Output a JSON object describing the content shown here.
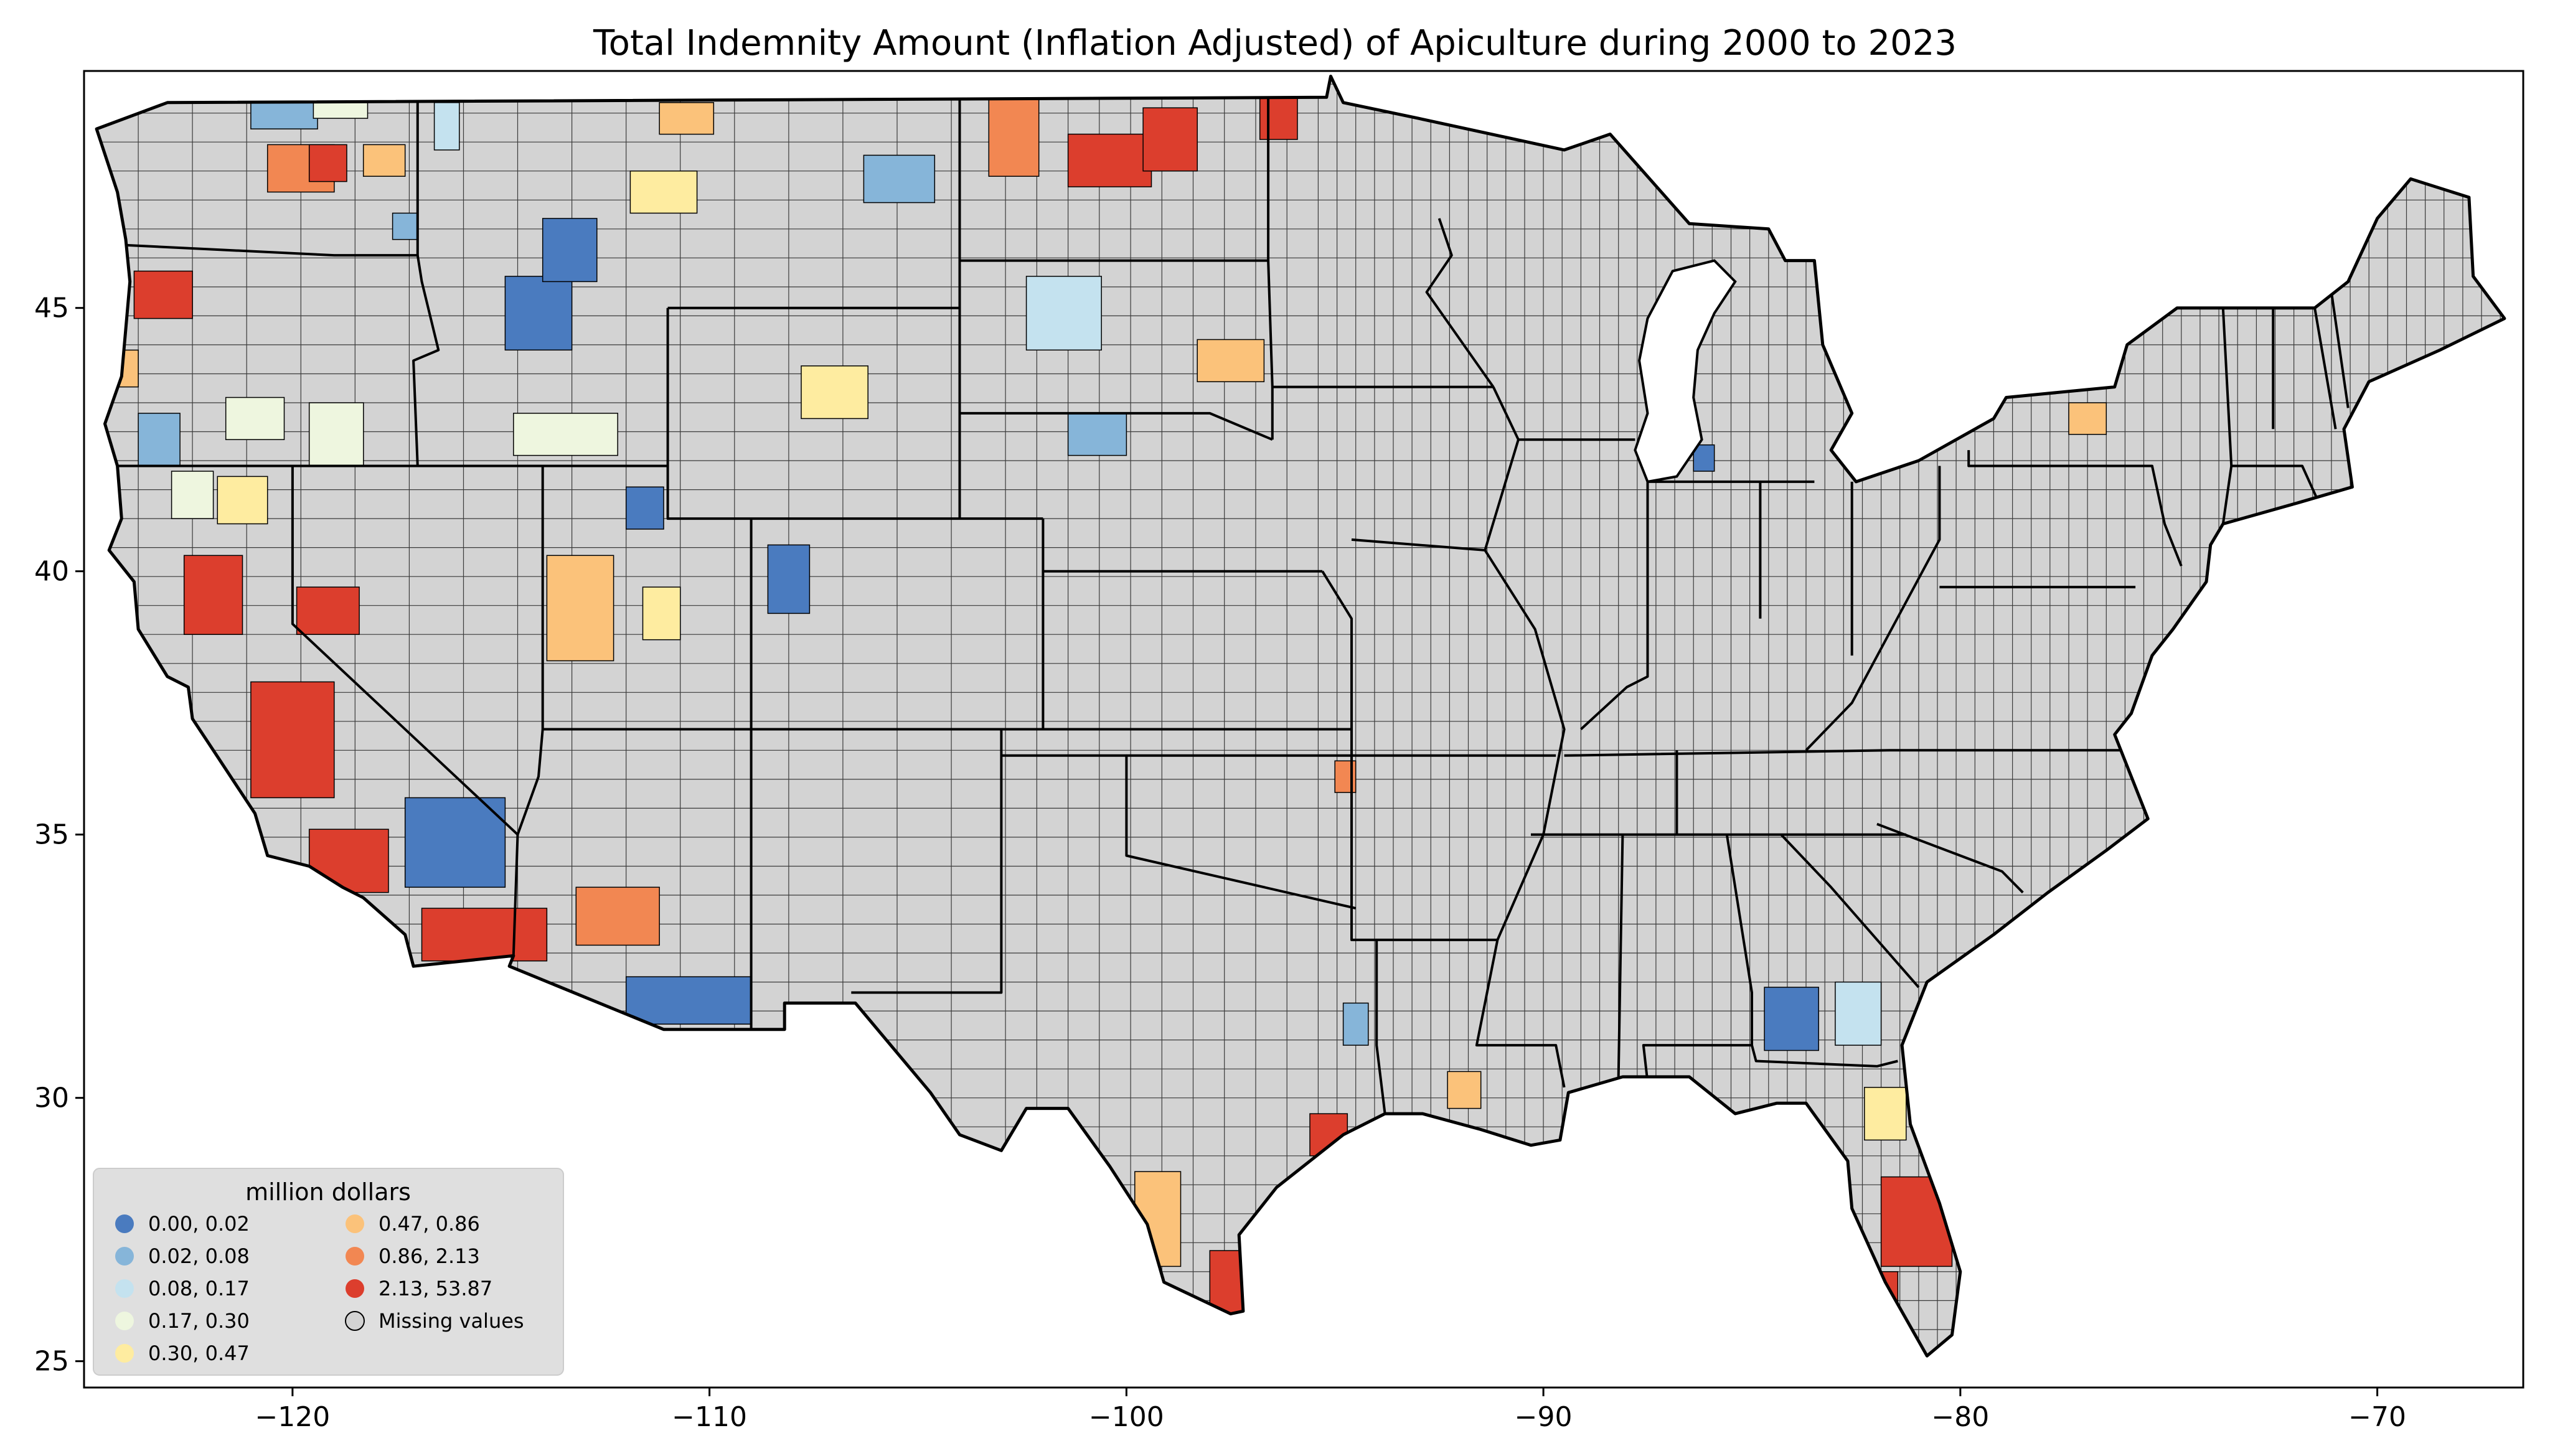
{
  "figure": {
    "title": "Total Indemnity Amount  (Inflation Adjusted) of Apiculture during 2000 to 2023"
  },
  "chart_data": {
    "type": "choropleth-map",
    "title": "Total Indemnity Amount  (Inflation Adjusted) of Apiculture during 2000 to 2023",
    "region": "Contiguous United States (counties)",
    "xlabel": "",
    "ylabel": "",
    "xlim": [
      -125,
      -66.5
    ],
    "ylim": [
      24.5,
      49.5
    ],
    "x_ticks": [
      -120,
      -110,
      -100,
      -90,
      -80,
      -70
    ],
    "x_tick_labels": [
      "−120",
      "−110",
      "−100",
      "−90",
      "−80",
      "−70"
    ],
    "y_ticks": [
      25,
      30,
      35,
      40,
      45
    ],
    "y_tick_labels": [
      "25",
      "30",
      "35",
      "40",
      "45"
    ],
    "missing_color": "#d3d3d3",
    "legend": {
      "title": "million dollars",
      "placement": "lower-left",
      "columns": 2,
      "classes": [
        {
          "label": "0.00,  0.02",
          "color": "#4a7bbf"
        },
        {
          "label": "0.02,  0.08",
          "color": "#86b5d9"
        },
        {
          "label": "0.08,  0.17",
          "color": "#c4e2ef"
        },
        {
          "label": "0.17,  0.30",
          "color": "#eef6df"
        },
        {
          "label": "0.30,  0.47",
          "color": "#feeca0"
        },
        {
          "label": "0.47,  0.86",
          "color": "#fbc27a"
        },
        {
          "label": "0.86,  2.13",
          "color": "#f28752"
        },
        {
          "label": "2.13, 53.87",
          "color": "#dc3e2d"
        },
        {
          "label": "Missing values",
          "color": "#d3d3d3"
        }
      ]
    },
    "colored_regions": [
      {
        "area": "Northern Washington",
        "class": 1
      },
      {
        "area": "Northern Washington interior",
        "class": 3
      },
      {
        "area": "Central Washington",
        "class": 6
      },
      {
        "area": "Central Washington core",
        "class": 7
      },
      {
        "area": "Eastern Washington",
        "class": 5
      },
      {
        "area": "Northern Idaho panhandle",
        "class": 2
      },
      {
        "area": "Southeast Washington",
        "class": 1
      },
      {
        "area": "Northwest Oregon",
        "class": 7
      },
      {
        "area": "Oregon coast",
        "class": 5
      },
      {
        "area": "Southwest Oregon",
        "class": 1
      },
      {
        "area": "Southern Oregon",
        "class": 3
      },
      {
        "area": "Southeast Oregon",
        "class": 3
      },
      {
        "area": "Northern California",
        "class": 3
      },
      {
        "area": "Northern California interior",
        "class": 4
      },
      {
        "area": "Sacramento Valley",
        "class": 7
      },
      {
        "area": "San Joaquin Valley",
        "class": 7
      },
      {
        "area": "Southern California coast",
        "class": 7
      },
      {
        "area": "San Bernardino County",
        "class": 0
      },
      {
        "area": "Southern California desert",
        "class": 7
      },
      {
        "area": "Western Nevada",
        "class": 7
      },
      {
        "area": "Central Idaho",
        "class": 0
      },
      {
        "area": "Southern Idaho",
        "class": 3
      },
      {
        "area": "Western Montana",
        "class": 0
      },
      {
        "area": "Central Montana",
        "class": 4
      },
      {
        "area": "Northern Montana",
        "class": 5
      },
      {
        "area": "Eastern Montana",
        "class": 1
      },
      {
        "area": "Wyoming central",
        "class": 4
      },
      {
        "area": "Western Utah",
        "class": 5
      },
      {
        "area": "Central Utah",
        "class": 4
      },
      {
        "area": "Northern Utah",
        "class": 0
      },
      {
        "area": "Colorado west",
        "class": 0
      },
      {
        "area": "Arizona central",
        "class": 6
      },
      {
        "area": "Southern Arizona",
        "class": 0
      },
      {
        "area": "Western North Dakota",
        "class": 6
      },
      {
        "area": "Central North Dakota",
        "class": 7
      },
      {
        "area": "Eastern North Dakota",
        "class": 7
      },
      {
        "area": "Northwest Minnesota",
        "class": 7
      },
      {
        "area": "Western South Dakota",
        "class": 2
      },
      {
        "area": "Eastern South Dakota",
        "class": 5
      },
      {
        "area": "Northern Nebraska",
        "class": 1
      },
      {
        "area": "Southern Texas",
        "class": 5
      },
      {
        "area": "Rio Grande Valley",
        "class": 7
      },
      {
        "area": "Houston area",
        "class": 7
      },
      {
        "area": "East Texas",
        "class": 1
      },
      {
        "area": "Southern Louisiana",
        "class": 5
      },
      {
        "area": "Southwest Georgia",
        "class": 0
      },
      {
        "area": "South Georgia",
        "class": 2
      },
      {
        "area": "North Florida",
        "class": 4
      },
      {
        "area": "Central Florida",
        "class": 7
      },
      {
        "area": "Southwest Florida",
        "class": 7
      },
      {
        "area": "Western New York",
        "class": 5
      },
      {
        "area": "Southwest Michigan",
        "class": 0
      },
      {
        "area": "Northeast Oklahoma",
        "class": 6
      }
    ]
  }
}
